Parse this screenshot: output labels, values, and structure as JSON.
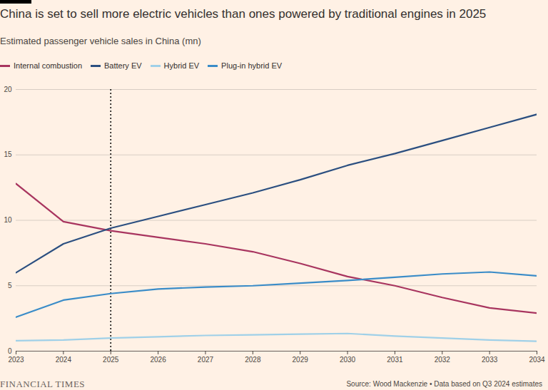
{
  "chart_data": {
    "type": "line",
    "title": "China is set to sell more electric vehicles than ones powered by traditional engines in 2025",
    "subtitle": "Estimated passenger vehicle sales in China (mn)",
    "source": "Source: Wood Mackenzie • Data based on Q3 2024 estimates",
    "logo": "FINANCIAL TIMES",
    "x": [
      2023,
      2024,
      2025,
      2026,
      2027,
      2028,
      2029,
      2030,
      2031,
      2032,
      2033,
      2034
    ],
    "series": [
      {
        "name": "Internal combustion",
        "color": "#a8355f",
        "values": [
          12.8,
          9.9,
          9.2,
          8.7,
          8.2,
          7.6,
          6.7,
          5.7,
          5.0,
          4.1,
          3.3,
          2.9
        ]
      },
      {
        "name": "Battery EV",
        "color": "#2b4f80",
        "values": [
          6.0,
          8.2,
          9.4,
          10.3,
          11.2,
          12.1,
          13.1,
          14.2,
          15.1,
          16.1,
          17.1,
          18.1
        ]
      },
      {
        "name": "Hybrid EV",
        "color": "#9fd0e8",
        "values": [
          0.8,
          0.85,
          1.0,
          1.1,
          1.2,
          1.25,
          1.3,
          1.35,
          1.15,
          1.0,
          0.85,
          0.75
        ]
      },
      {
        "name": "Plug-in hybrid EV",
        "color": "#3a8cc8",
        "values": [
          2.6,
          3.9,
          4.4,
          4.75,
          4.9,
          5.0,
          5.2,
          5.4,
          5.65,
          5.9,
          6.05,
          5.75
        ]
      }
    ],
    "xlim": [
      2023,
      2034
    ],
    "xticks": [
      2023,
      2024,
      2025,
      2026,
      2027,
      2028,
      2029,
      2030,
      2031,
      2032,
      2033,
      2034
    ],
    "ylim": [
      0,
      20
    ],
    "yticks": [
      0,
      5,
      10,
      15,
      20
    ],
    "reference_line": {
      "x": 2025
    },
    "grid": true,
    "legend": "top-left"
  }
}
